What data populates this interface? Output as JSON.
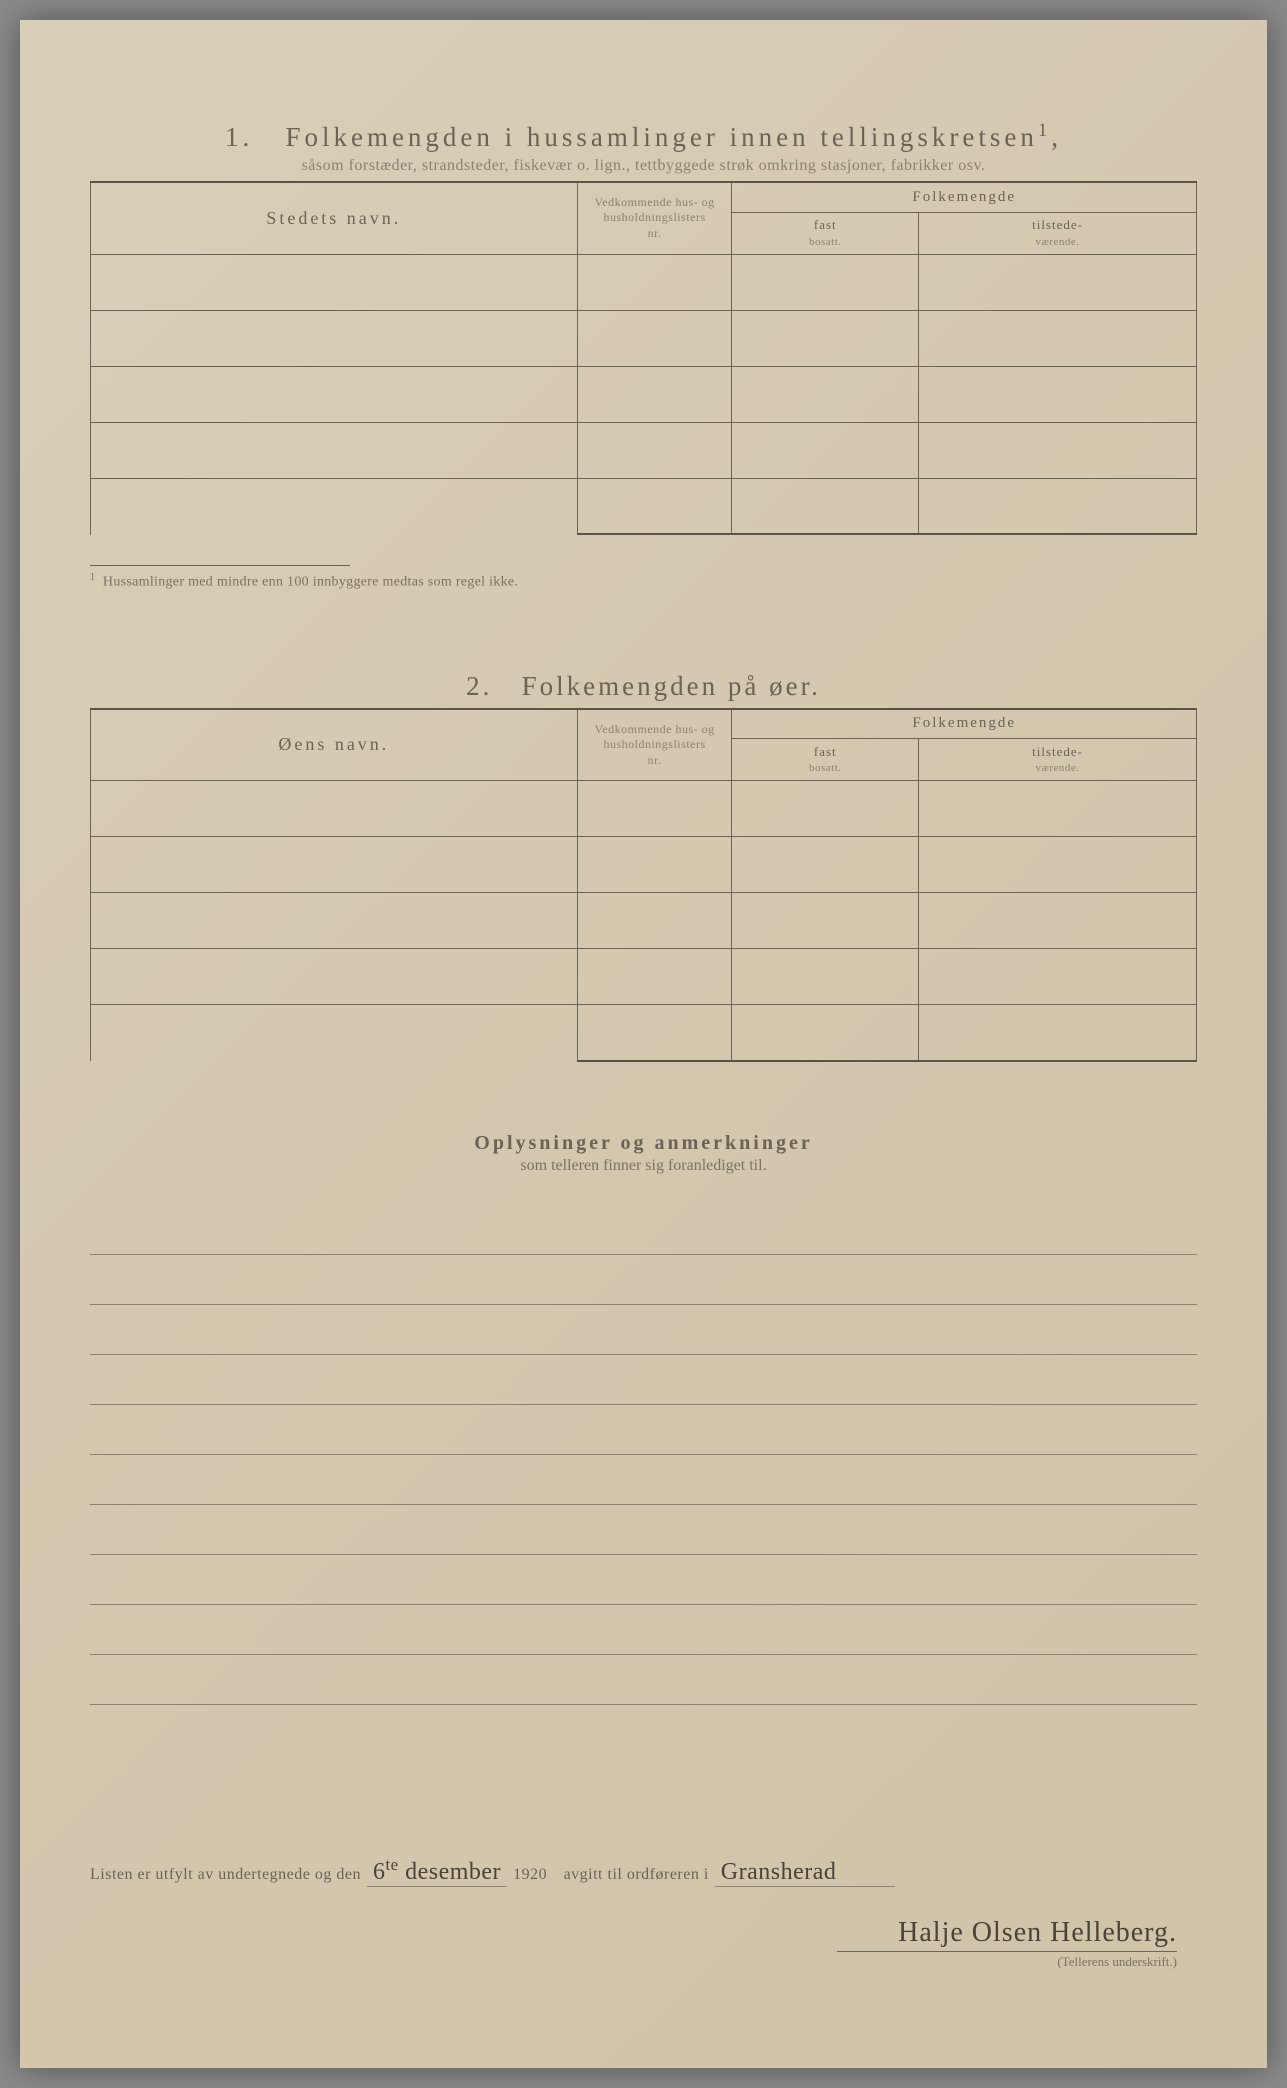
{
  "section1": {
    "number": "1.",
    "title": "Folkemengden i hussamlinger innen tellingskretsen",
    "title_sup": "1",
    "subtitle": "såsom forstæder, strandsteder, fiskevær o. lign., tettbyggede strøk omkring stasjoner, fabrikker osv.",
    "col_name": "Stedets navn.",
    "col_nr_l1": "Vedkommende hus- og",
    "col_nr_l2": "husholdningslisters",
    "col_nr_l3": "nr.",
    "col_folke": "Folkemengde",
    "col_fast_l1": "fast",
    "col_fast_l2": "bosatt.",
    "col_til_l1": "tilstede-",
    "col_til_l2": "værende.",
    "row_count": 5,
    "footnote": "Hussamlinger med mindre enn 100 innbyggere medtas som regel ikke.",
    "footnote_marker": "1"
  },
  "section2": {
    "number": "2.",
    "title": "Folkemengden på øer.",
    "col_name": "Øens navn.",
    "col_nr_l1": "Vedkommende hus- og",
    "col_nr_l2": "husholdningslisters",
    "col_nr_l3": "nr.",
    "col_folke": "Folkemengde",
    "col_fast_l1": "fast",
    "col_fast_l2": "bosatt.",
    "col_til_l1": "tilstede-",
    "col_til_l2": "værende.",
    "row_count": 5
  },
  "section3": {
    "title": "Oplysninger og anmerkninger",
    "subtitle": "som telleren finner sig foranlediget til.",
    "line_count": 10
  },
  "bottom": {
    "text1": "Listen er utfylt av undertegnede og den",
    "hand_day": "6",
    "hand_day_sup": "te",
    "hand_month": "desember",
    "year": "1920",
    "text2": "avgitt til ordføreren i",
    "hand_place": "Gransherad"
  },
  "signature": {
    "name": "Halje Olsen Helleberg.",
    "label": "(Tellerens underskrift.)"
  },
  "style": {
    "paper_bg": "#d4c9b0",
    "text_color": "#6a6356",
    "rule_color": "#6b6557"
  }
}
